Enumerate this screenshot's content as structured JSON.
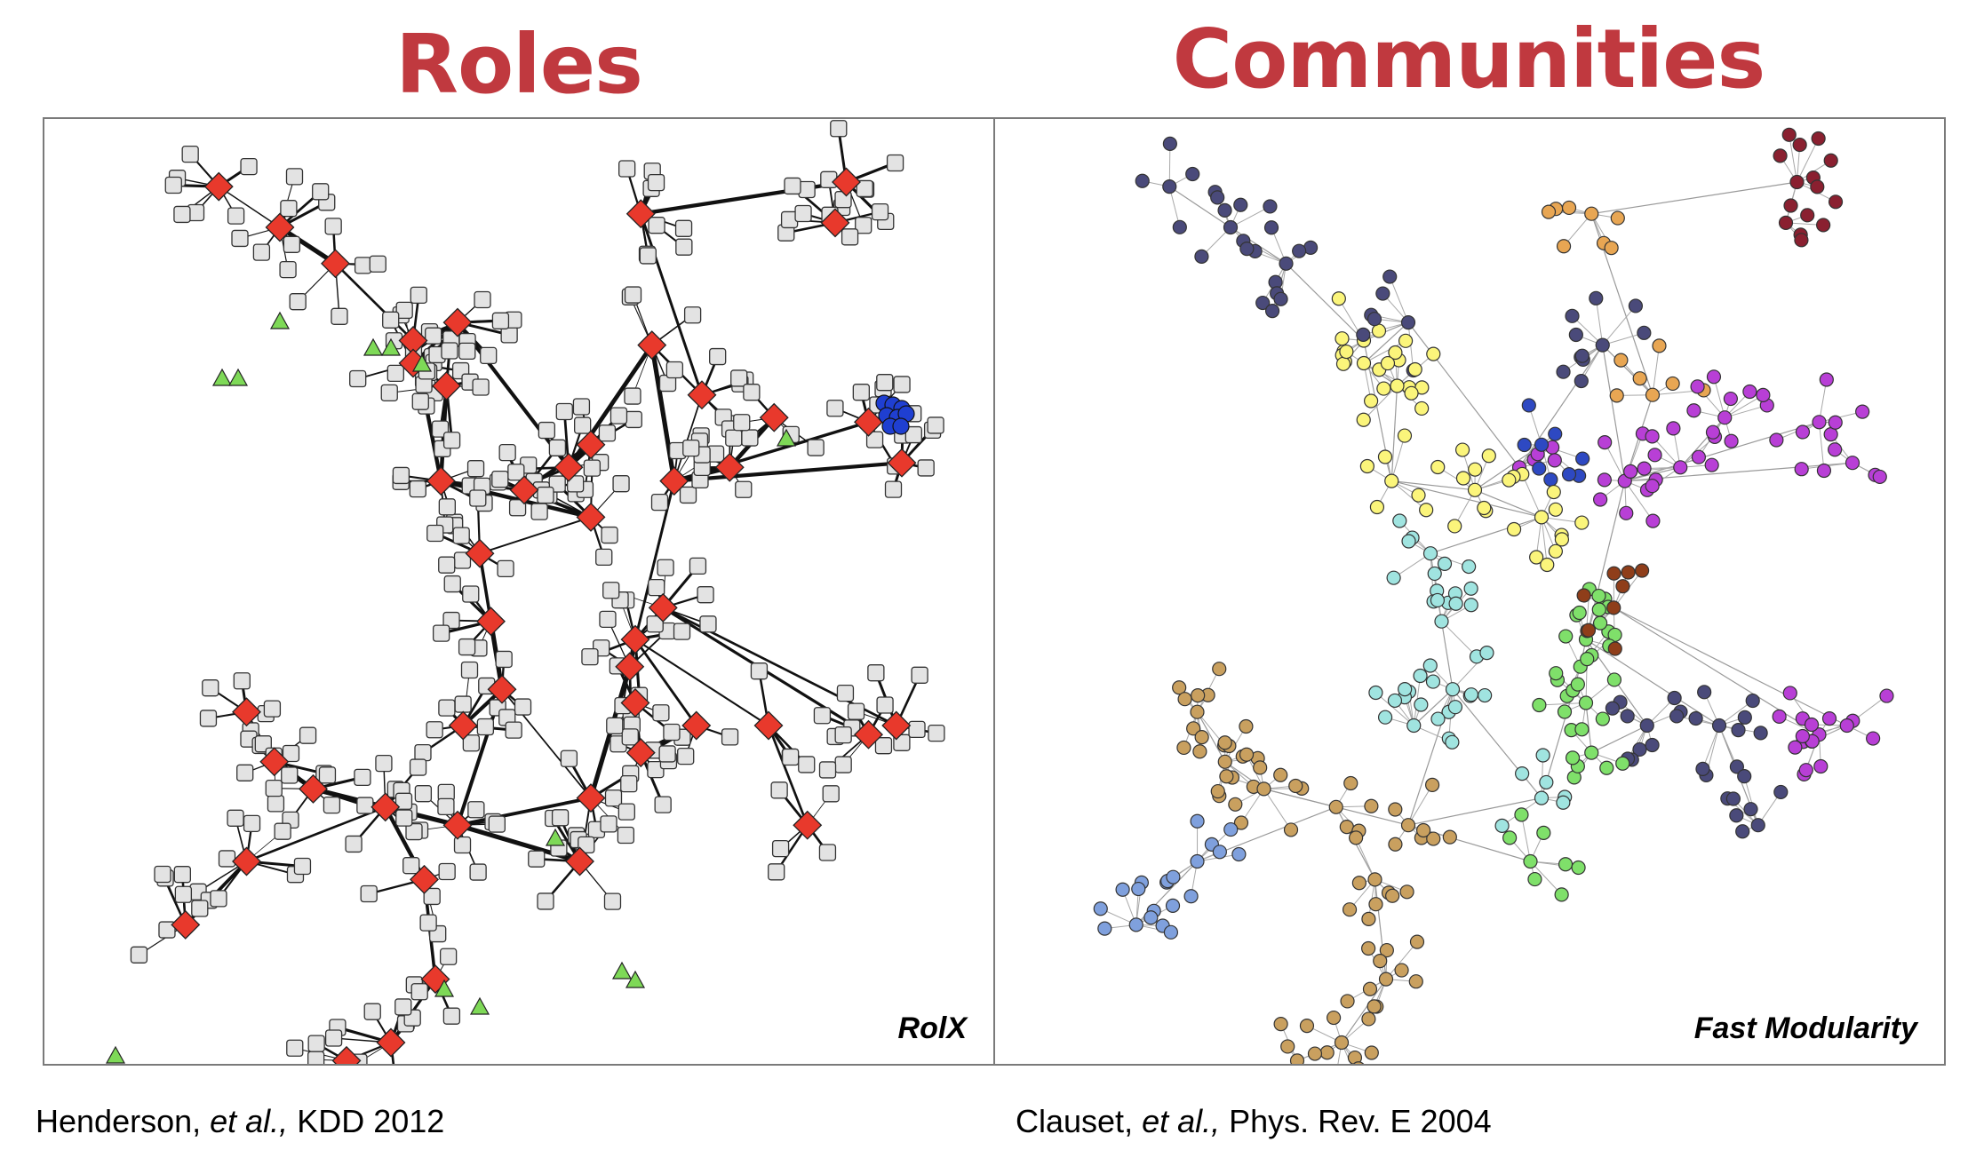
{
  "colors": {
    "title": "#c0393f",
    "frame": "#7a7a7a",
    "edge": "#111111",
    "node_default": "#e3e3e3",
    "role_hub": "#e8392c",
    "role_peripheral": "#7ed957",
    "role_clique": "#1f3fd1",
    "community_colors": [
      "#4a4a7a",
      "#e8a653",
      "#c9a05f",
      "#7fe06a",
      "#b83fd6",
      "#2e49c2",
      "#fbf57b",
      "#a0e4e0",
      "#8f3e1a",
      "#7fa0dd",
      "#e05a50",
      "#3a6b80",
      "#e5ed7a",
      "#8a2030"
    ]
  },
  "left": {
    "title": "Roles",
    "label": "RolX",
    "citation": {
      "pre": "Henderson, ",
      "italic": "et al.,",
      "post": " KDD 2012"
    }
  },
  "right": {
    "title": "Communities",
    "label": "Fast Modularity",
    "citation": {
      "pre": "Clauset, ",
      "italic": "et al.,",
      "post": " Phys. Rev. E 2004"
    }
  }
}
